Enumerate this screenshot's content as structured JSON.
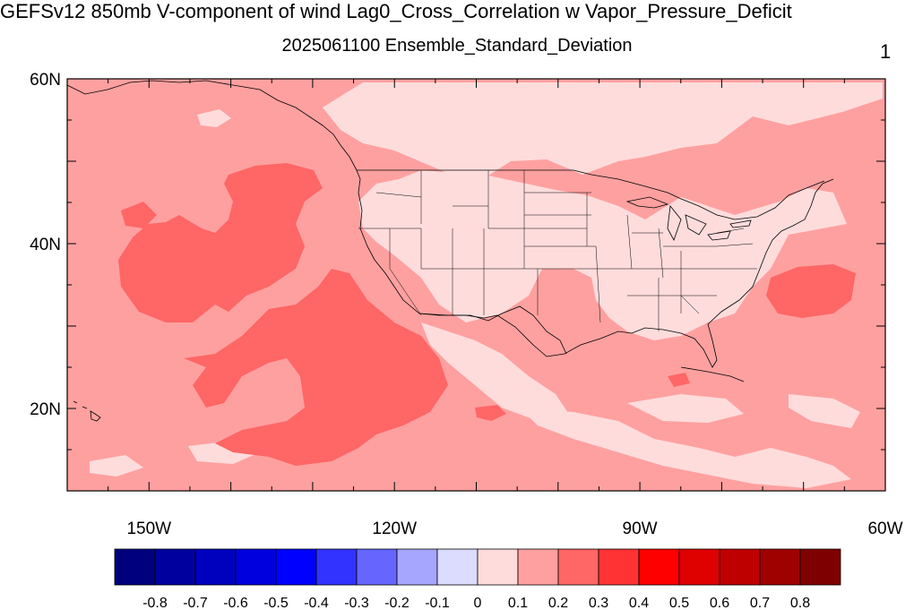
{
  "title": "GEFSv12 850mb V-component of wind Lag0_Cross_Correlation w Vapor_Pressure_Deficit",
  "subtitle": "2025061100 Ensemble_Standard_Deviation",
  "panel_number": "1",
  "map": {
    "projection": "cylindrical-equidistant",
    "lon_range": [
      -160,
      -60
    ],
    "lat_range": [
      10,
      60
    ],
    "lat_labels": [
      {
        "value": 60,
        "label": "60N"
      },
      {
        "value": 40,
        "label": "40N"
      },
      {
        "value": 20,
        "label": "20N"
      }
    ],
    "lon_labels": [
      {
        "value": -150,
        "label": "150W"
      },
      {
        "value": -120,
        "label": "120W"
      },
      {
        "value": -90,
        "label": "90W"
      },
      {
        "value": -60,
        "label": "60W"
      }
    ],
    "dominant_field_color": "#ffa0a0",
    "features": [
      "US state boundaries",
      "coastlines",
      "Great Lakes"
    ]
  },
  "colorbar": {
    "colors": [
      "#00007f",
      "#00009f",
      "#0000bf",
      "#0000df",
      "#0000ff",
      "#3333ff",
      "#6666ff",
      "#a6a6ff",
      "#dcdcff",
      "#ffdcdc",
      "#ffa0a0",
      "#ff6666",
      "#ff3333",
      "#ff0000",
      "#df0000",
      "#bf0000",
      "#9f0000",
      "#7f0000"
    ],
    "labels": [
      "-0.8",
      "-0.7",
      "-0.6",
      "-0.5",
      "-0.4",
      "-0.3",
      "-0.2",
      "-0.1",
      "0",
      "0.1",
      "0.2",
      "0.3",
      "0.4",
      "0.5",
      "0.6",
      "0.7",
      "0.8"
    ]
  }
}
